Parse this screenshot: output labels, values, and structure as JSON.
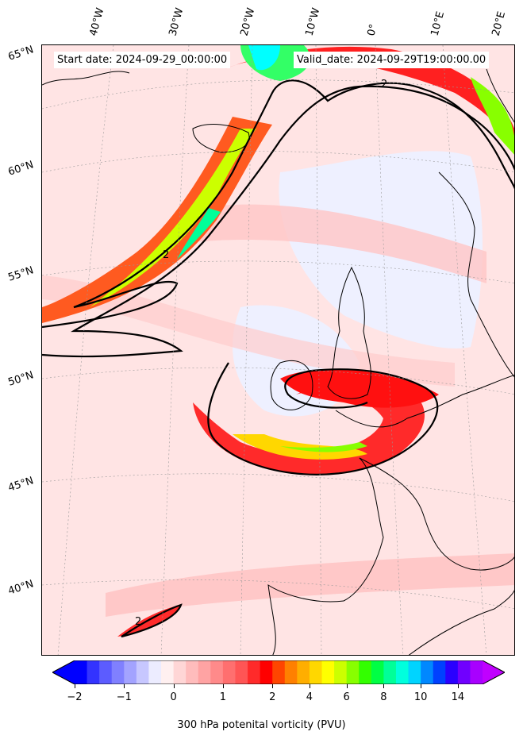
{
  "header": {
    "start_date": "Start date: 2024-09-29_00:00:00",
    "valid_date": "Valid_date: 2024-09-29T19:00:00.00"
  },
  "longitude_labels": [
    "40°W",
    "30°W",
    "20°W",
    "10°W",
    "0°",
    "10°E",
    "20°E"
  ],
  "latitude_labels": [
    "65°N",
    "60°N",
    "55°N",
    "50°N",
    "45°N",
    "40°N"
  ],
  "contour_labels": [
    "2",
    "2",
    "2"
  ],
  "colorbar": {
    "label": "300 hPa potenital vorticity (PVU)",
    "ticks": [
      "−2",
      "−1",
      "0",
      "1",
      "2",
      "4",
      "6",
      "8",
      "10",
      "14"
    ],
    "colors": [
      "#0000ff",
      "#3333ff",
      "#5c5cff",
      "#8080ff",
      "#a3a3ff",
      "#c7c7ff",
      "#ececff",
      "#fff0f0",
      "#ffd6d6",
      "#ffbcbc",
      "#ffa3a3",
      "#ff8a8a",
      "#ff6f6f",
      "#ff5555",
      "#ff2a2a",
      "#ff0000",
      "#ff4500",
      "#ff8000",
      "#ffae00",
      "#ffd700",
      "#ffff00",
      "#ccff00",
      "#88ff00",
      "#33ff00",
      "#00ff44",
      "#00ff99",
      "#00ffdd",
      "#00d4ff",
      "#0088ff",
      "#0040ff",
      "#2a00ff",
      "#7000ff",
      "#a800ff"
    ]
  },
  "style": {
    "background_pv": "#ffe4e4",
    "contour_color": "#000000",
    "coastline_color": "#000000"
  }
}
